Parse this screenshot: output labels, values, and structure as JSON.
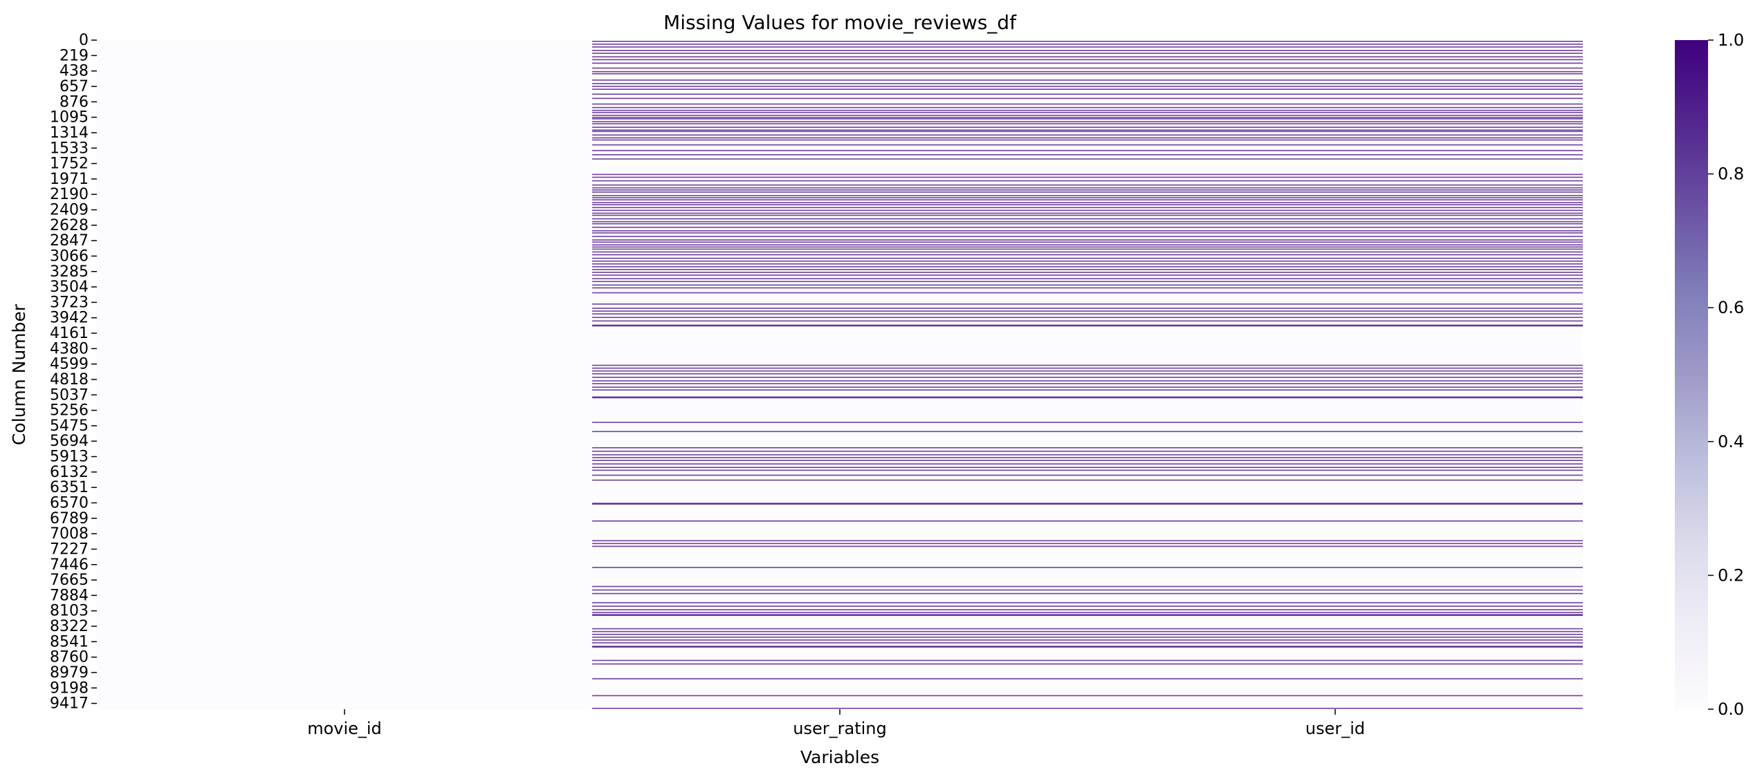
{
  "chart_data": {
    "type": "heatmap",
    "title": "Missing Values for movie_reviews_df",
    "xlabel": "Variables",
    "ylabel": "Column Number",
    "columns": [
      "movie_id",
      "user_rating",
      "user_id"
    ],
    "row_count": 9500,
    "y_tick_labels": [
      0,
      219,
      438,
      657,
      876,
      1095,
      1314,
      1533,
      1752,
      1971,
      2190,
      2409,
      2628,
      2847,
      3066,
      3285,
      3504,
      3723,
      3942,
      4161,
      4380,
      4599,
      4818,
      5037,
      5256,
      5475,
      5694,
      5913,
      6132,
      6351,
      6570,
      6789,
      7008,
      7227,
      7446,
      7665,
      7884,
      8103,
      8322,
      8541,
      8760,
      8979,
      9198,
      9417
    ],
    "missing_rows": {
      "movie_id": [],
      "user_rating": [
        10,
        50,
        90,
        140,
        180,
        230,
        270,
        320,
        390,
        440,
        470,
        560,
        610,
        650,
        690,
        760,
        820,
        900,
        950,
        990,
        1020,
        1060,
        1090,
        1110,
        1150,
        1180,
        1230,
        1270,
        1290,
        1340,
        1380,
        1410,
        1480,
        1560,
        1620,
        1680,
        1900,
        1940,
        1990,
        2050,
        2090,
        2120,
        2150,
        2200,
        2230,
        2260,
        2300,
        2330,
        2370,
        2410,
        2450,
        2480,
        2530,
        2570,
        2600,
        2650,
        2700,
        2730,
        2780,
        2830,
        2860,
        2900,
        2930,
        2960,
        3000,
        3040,
        3090,
        3130,
        3170,
        3210,
        3250,
        3290,
        3330,
        3380,
        3420,
        3470,
        3510,
        3580,
        3740,
        3800,
        3840,
        3880,
        3930,
        3980,
        4040,
        4050,
        4610,
        4650,
        4690,
        4730,
        4780,
        4830,
        4870,
        4920,
        4960,
        5060,
        5070,
        5420,
        5550,
        5780,
        5830,
        5880,
        5920,
        5960,
        6010,
        6060,
        6100,
        6170,
        6240,
        6570,
        6580,
        6820,
        7100,
        7140,
        7180,
        7480,
        7750,
        7800,
        7850,
        7980,
        8030,
        8080,
        8120,
        8150,
        8160,
        8350,
        8390,
        8430,
        8470,
        8510,
        8550,
        8600,
        8610,
        8800,
        8850,
        9060,
        9300,
        9480
      ],
      "user_id": [
        10,
        50,
        90,
        140,
        180,
        230,
        270,
        320,
        390,
        440,
        470,
        560,
        610,
        650,
        690,
        760,
        820,
        900,
        950,
        990,
        1020,
        1060,
        1090,
        1110,
        1150,
        1180,
        1230,
        1270,
        1290,
        1340,
        1380,
        1410,
        1480,
        1560,
        1620,
        1680,
        1900,
        1940,
        1990,
        2050,
        2090,
        2120,
        2150,
        2200,
        2230,
        2260,
        2300,
        2330,
        2370,
        2410,
        2450,
        2480,
        2530,
        2570,
        2600,
        2650,
        2700,
        2730,
        2780,
        2830,
        2860,
        2900,
        2930,
        2960,
        3000,
        3040,
        3090,
        3130,
        3170,
        3210,
        3250,
        3290,
        3330,
        3380,
        3420,
        3470,
        3510,
        3580,
        3740,
        3800,
        3840,
        3880,
        3930,
        3980,
        4040,
        4050,
        4610,
        4650,
        4690,
        4730,
        4780,
        4830,
        4870,
        4920,
        4960,
        5060,
        5070,
        5420,
        5550,
        5780,
        5830,
        5880,
        5920,
        5960,
        6010,
        6060,
        6100,
        6170,
        6240,
        6570,
        6580,
        6820,
        7100,
        7140,
        7180,
        7480,
        7750,
        7800,
        7850,
        7980,
        8030,
        8080,
        8120,
        8150,
        8160,
        8350,
        8390,
        8430,
        8470,
        8510,
        8550,
        8600,
        8610,
        8800,
        8850,
        9060,
        9300,
        9480
      ]
    },
    "colorbar": {
      "range": [
        0,
        1
      ],
      "tick_labels": [
        "0.0",
        "0.2",
        "0.4",
        "0.6",
        "0.8",
        "1.0"
      ]
    },
    "colormap": {
      "name": "Purples",
      "low_color": "#fcfbfd",
      "high_color": "#3f007d",
      "stops": [
        "#fcfbfd",
        "#efedf5",
        "#dadaeb",
        "#bcbddc",
        "#9e9ac8",
        "#807dba",
        "#6a51a3",
        "#54278f",
        "#3f007d"
      ]
    }
  }
}
